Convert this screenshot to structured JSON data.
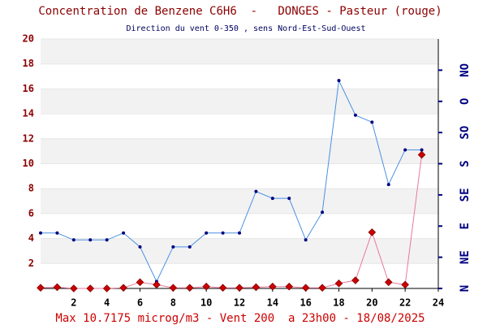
{
  "chart_data": {
    "type": "line",
    "title": "Concentration de Benzene C6H6  -   DONGES - Pasteur (rouge)",
    "subtitle": "Direction du vent 0-350 , sens Nord-Est-Sud-Ouest",
    "footer": "Max 10.7175 microg/m3 - Vent 200  a 23h00 - 18/08/2025",
    "x": [
      0,
      1,
      2,
      3,
      4,
      5,
      6,
      7,
      8,
      9,
      10,
      11,
      12,
      13,
      14,
      15,
      16,
      17,
      18,
      19,
      20,
      21,
      22,
      23
    ],
    "series": [
      {
        "name": "Vent",
        "color": "#4a90e2",
        "axis": "y2",
        "values": [
          80,
          80,
          70,
          70,
          70,
          80,
          60,
          10,
          60,
          60,
          80,
          80,
          80,
          140,
          130,
          130,
          70,
          110,
          300,
          250,
          240,
          150,
          200,
          200
        ]
      },
      {
        "name": "Benzene",
        "color": "#e87a9a",
        "values": [
          0.05,
          0.1,
          0.0,
          0.0,
          0.0,
          0.05,
          0.5,
          0.3,
          0.05,
          0.05,
          0.15,
          0.05,
          0.05,
          0.1,
          0.15,
          0.15,
          0.05,
          0.05,
          0.4,
          0.65,
          4.5,
          0.5,
          0.3,
          10.7175
        ]
      }
    ],
    "xlim": [
      0,
      24
    ],
    "xticks": [
      2,
      4,
      6,
      8,
      10,
      12,
      14,
      16,
      18,
      20,
      22,
      24
    ],
    "ylim": [
      0,
      20
    ],
    "yticks": [
      2,
      4,
      6,
      8,
      10,
      12,
      14,
      16,
      18,
      20
    ],
    "y2lim": [
      0,
      360
    ],
    "y2ticks": [
      {
        "value": 0,
        "label": "N"
      },
      {
        "value": 45,
        "label": "NE"
      },
      {
        "value": 90,
        "label": "E"
      },
      {
        "value": 135,
        "label": "SE"
      },
      {
        "value": 180,
        "label": "S"
      },
      {
        "value": 225,
        "label": "SO"
      },
      {
        "value": 270,
        "label": "O"
      },
      {
        "value": 315,
        "label": "NO"
      }
    ],
    "grid": true
  }
}
